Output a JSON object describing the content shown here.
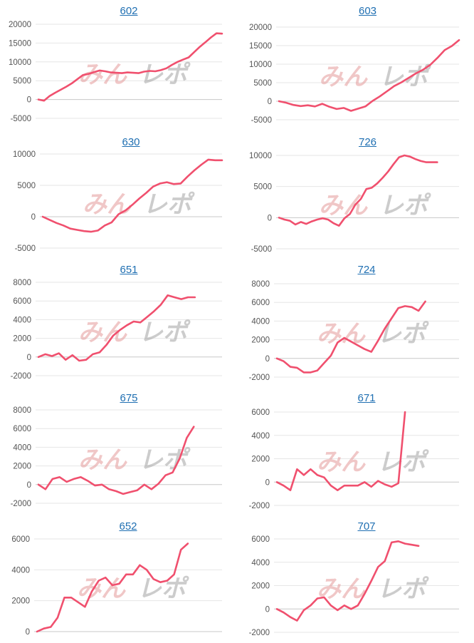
{
  "colors": {
    "line": "#f0506e",
    "grid": "#e6e6e6",
    "zero": "#c8c8c8",
    "title": "#1f6fb2"
  },
  "watermark": {
    "left": "みん",
    "right": "レポ"
  },
  "chart_data": [
    {
      "type": "line",
      "title": "602",
      "ylim": [
        -5000,
        20000
      ],
      "yticks": [
        "20000",
        "15000",
        "10000",
        "5000",
        "0",
        "-5000"
      ],
      "ytick_values": [
        20000,
        15000,
        10000,
        5000,
        0,
        -5000
      ],
      "x": [
        0,
        1,
        2,
        3,
        4,
        5,
        6,
        7,
        8,
        9,
        10,
        11,
        12,
        13,
        14,
        15,
        16,
        17,
        18,
        19,
        20,
        21,
        22,
        23,
        24,
        25,
        26,
        27,
        28,
        29,
        30,
        31,
        32,
        33
      ],
      "values": [
        0,
        -300,
        900,
        1800,
        2600,
        3400,
        4300,
        5400,
        6500,
        6800,
        7300,
        7700,
        7500,
        7200,
        7100,
        7000,
        7200,
        7100,
        7000,
        7400,
        7600,
        7500,
        7800,
        8300,
        9200,
        10000,
        10600,
        11200,
        12600,
        14000,
        15200,
        16500,
        17600,
        17500
      ]
    },
    {
      "type": "line",
      "title": "603",
      "ylim": [
        -5000,
        20000
      ],
      "yticks": [
        "20000",
        "15000",
        "10000",
        "5000",
        "0",
        "-5000"
      ],
      "ytick_values": [
        20000,
        15000,
        10000,
        5000,
        0,
        -5000
      ],
      "x": [
        0,
        1,
        2,
        3,
        4,
        5,
        6,
        7,
        8,
        9,
        10,
        11,
        12,
        13,
        14,
        15,
        16,
        17,
        18,
        19,
        20,
        21,
        22,
        23,
        24,
        25
      ],
      "values": [
        0,
        -400,
        -1000,
        -1300,
        -1100,
        -1400,
        -700,
        -1500,
        -2100,
        -1800,
        -2600,
        -2000,
        -1400,
        100,
        1300,
        2700,
        4100,
        5100,
        6300,
        7500,
        8500,
        9800,
        11700,
        13800,
        14900,
        16500
      ]
    },
    {
      "type": "line",
      "title": "630",
      "ylim": [
        -5000,
        10000
      ],
      "yticks": [
        "10000",
        "5000",
        "0",
        "-5000"
      ],
      "ytick_values": [
        10000,
        5000,
        0,
        -5000
      ],
      "x": [
        0,
        1,
        2,
        3,
        4,
        5,
        6,
        7,
        8,
        9,
        10,
        11,
        12,
        13,
        14,
        15,
        16,
        17,
        18,
        19,
        20,
        21,
        22,
        23,
        24,
        25,
        26
      ],
      "values": [
        0,
        -500,
        -1000,
        -1400,
        -1900,
        -2100,
        -2300,
        -2400,
        -2200,
        -1400,
        -900,
        400,
        1000,
        1900,
        2900,
        3800,
        4800,
        5300,
        5500,
        5200,
        5300,
        6400,
        7400,
        8300,
        9100,
        9000,
        9000
      ]
    },
    {
      "type": "line",
      "title": "726",
      "ylim": [
        -5000,
        10000
      ],
      "yticks": [
        "10000",
        "5000",
        "0",
        "-5000"
      ],
      "ytick_values": [
        10000,
        5000,
        0,
        -5000
      ],
      "x": [
        0,
        1,
        2,
        3,
        4,
        5,
        6,
        7,
        8,
        9,
        10,
        11,
        12,
        13,
        14,
        15,
        16,
        17,
        18,
        19,
        20,
        21,
        22,
        23,
        24,
        25,
        26,
        27,
        28,
        29,
        30,
        31,
        32,
        33
      ],
      "values": [
        0,
        -300,
        -500,
        -1100,
        -700,
        -1000,
        -600,
        -300,
        -100,
        -300,
        -900,
        -1300,
        -100,
        600,
        2100,
        3000,
        4600,
        4800,
        5500,
        6400,
        7400,
        8600,
        9700,
        10000,
        9800,
        9400,
        9100,
        8900,
        8900,
        8900,
        8900,
        8900,
        8900,
        8900
      ]
    },
    {
      "type": "line",
      "title": "651",
      "ylim": [
        -2000,
        8000
      ],
      "yticks": [
        "8000",
        "6000",
        "4000",
        "2000",
        "0",
        "-2000"
      ],
      "ytick_values": [
        8000,
        6000,
        4000,
        2000,
        0,
        -2000
      ],
      "x": [
        0,
        1,
        2,
        3,
        4,
        5,
        6,
        7,
        8,
        9,
        10,
        11,
        12,
        13,
        14,
        15,
        16,
        17,
        18,
        19,
        20,
        21,
        22,
        23,
        24,
        25,
        26,
        27
      ],
      "values": [
        0,
        300,
        100,
        400,
        -300,
        200,
        -400,
        -300,
        300,
        500,
        1300,
        2300,
        2900,
        3400,
        3800,
        3700,
        4300,
        4900,
        5600,
        6600,
        6400,
        6200,
        6400,
        6400,
        6400,
        6400,
        6400,
        6400
      ]
    },
    {
      "type": "line",
      "title": "724",
      "ylim": [
        -2000,
        8000
      ],
      "yticks": [
        "8000",
        "6000",
        "4000",
        "2000",
        "0",
        "-2000"
      ],
      "ytick_values": [
        8000,
        6000,
        4000,
        2000,
        0,
        -2000
      ],
      "x": [
        0,
        1,
        2,
        3,
        4,
        5,
        6,
        7,
        8,
        9,
        10,
        11,
        12,
        13,
        14,
        15,
        16,
        17,
        18,
        19,
        20,
        21,
        22,
        23,
        24,
        25,
        26,
        27
      ],
      "values": [
        0,
        -300,
        -900,
        -1000,
        -1500,
        -1500,
        -1300,
        -500,
        300,
        1700,
        2200,
        1800,
        1400,
        1000,
        700,
        1900,
        3200,
        4300,
        5400,
        5600,
        5500,
        5100,
        6100,
        6100,
        6100,
        6100,
        6100,
        6100
      ]
    },
    {
      "type": "line",
      "title": "675",
      "ylim": [
        -2000,
        8000
      ],
      "yticks": [
        "8000",
        "6000",
        "4000",
        "2000",
        "0",
        "-2000"
      ],
      "ytick_values": [
        8000,
        6000,
        4000,
        2000,
        0,
        -2000
      ],
      "x": [
        0,
        1,
        2,
        3,
        4,
        5,
        6,
        7,
        8,
        9,
        10,
        11,
        12,
        13,
        14,
        15,
        16,
        17,
        18,
        19,
        20,
        21,
        22,
        23,
        24,
        25,
        26
      ],
      "values": [
        0,
        -500,
        600,
        800,
        300,
        600,
        800,
        400,
        -100,
        0,
        -500,
        -700,
        -1000,
        -800,
        -600,
        0,
        -500,
        100,
        1000,
        1300,
        2800,
        5000,
        6200,
        6200,
        6200,
        6200,
        6200
      ]
    },
    {
      "type": "line",
      "title": "671",
      "ylim": [
        -2000,
        6000
      ],
      "yticks": [
        "6000",
        "4000",
        "2000",
        "0",
        "-2000"
      ],
      "ytick_values": [
        6000,
        4000,
        2000,
        0,
        -2000
      ],
      "x": [
        0,
        1,
        2,
        3,
        4,
        5,
        6,
        7,
        8,
        9,
        10,
        11,
        12,
        13,
        14,
        15,
        16,
        17,
        18,
        19,
        20,
        21,
        22,
        23,
        24,
        25,
        26,
        27
      ],
      "values": [
        0,
        -300,
        -700,
        1100,
        600,
        1100,
        600,
        400,
        -300,
        -700,
        -300,
        -300,
        -300,
        0,
        -400,
        100,
        -200,
        -400,
        -100,
        6000,
        6000,
        6000,
        6000,
        6000,
        6000,
        6000,
        6000,
        6000
      ]
    },
    {
      "type": "line",
      "title": "652",
      "ylim": [
        0,
        6000
      ],
      "yticks": [
        "6000",
        "4000",
        "2000",
        "0"
      ],
      "ytick_values": [
        6000,
        4000,
        2000,
        0
      ],
      "x": [
        0,
        1,
        2,
        3,
        4,
        5,
        6,
        7,
        8,
        9,
        10,
        11,
        12,
        13,
        14,
        15,
        16,
        17,
        18,
        19,
        20,
        21,
        22,
        23,
        24,
        25,
        26,
        27
      ],
      "values": [
        0,
        200,
        300,
        900,
        2200,
        2200,
        1900,
        1600,
        2600,
        3300,
        3500,
        3000,
        3100,
        3700,
        3700,
        4300,
        4000,
        3400,
        3200,
        3300,
        3700,
        5300,
        5700,
        5700,
        5700,
        5700,
        5700,
        5700
      ]
    },
    {
      "type": "line",
      "title": "707",
      "ylim": [
        -2000,
        6000
      ],
      "yticks": [
        "6000",
        "4000",
        "2000",
        "0",
        "-2000"
      ],
      "ytick_values": [
        6000,
        4000,
        2000,
        0,
        -2000
      ],
      "x": [
        0,
        1,
        2,
        3,
        4,
        5,
        6,
        7,
        8,
        9,
        10,
        11,
        12,
        13,
        14,
        15,
        16,
        17,
        18,
        19,
        20,
        21,
        22,
        23,
        24,
        25,
        26,
        27
      ],
      "values": [
        0,
        -300,
        -700,
        -1000,
        -100,
        300,
        900,
        1000,
        300,
        -100,
        300,
        0,
        300,
        1300,
        2400,
        3600,
        4100,
        5700,
        5800,
        5600,
        5500,
        5400,
        5400,
        5400,
        5400,
        5400,
        5400,
        5400
      ]
    }
  ]
}
